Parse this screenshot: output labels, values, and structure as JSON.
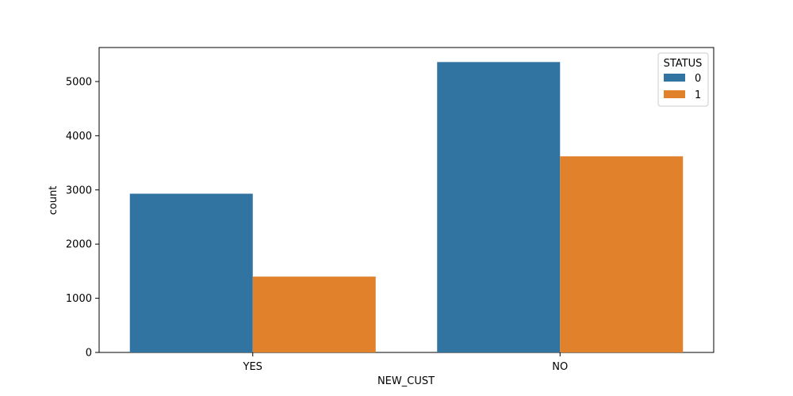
{
  "chart_data": {
    "type": "bar",
    "xlabel": "NEW_CUST",
    "ylabel": "count",
    "categories": [
      "YES",
      "NO"
    ],
    "series": [
      {
        "name": "0",
        "values": [
          2930,
          5360
        ],
        "color": "#3274a1"
      },
      {
        "name": "1",
        "values": [
          1400,
          3620
        ],
        "color": "#e1812c"
      }
    ],
    "ylim": [
      0,
      5628
    ],
    "yticks": [
      0,
      1000,
      2000,
      3000,
      4000,
      5000
    ],
    "grid": false,
    "legend": {
      "title": "STATUS",
      "placement": "top-right",
      "entries": [
        "0",
        "1"
      ]
    }
  }
}
